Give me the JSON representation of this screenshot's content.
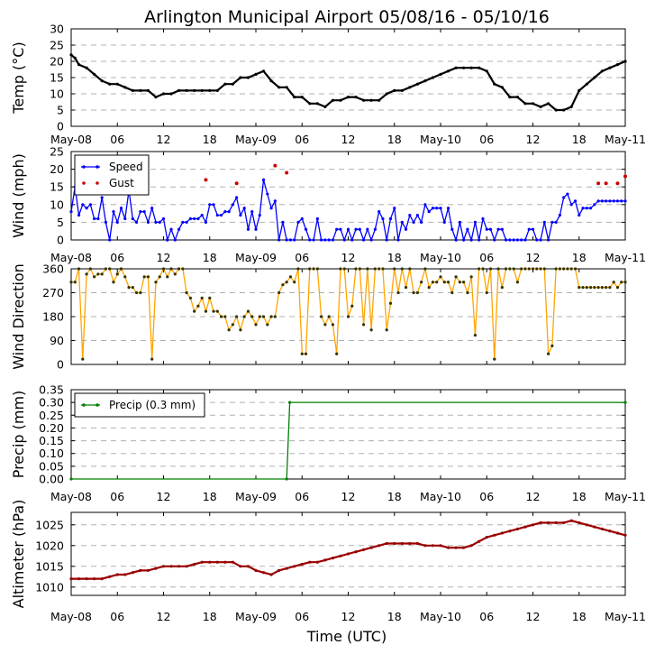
{
  "title": "Arlington Municipal Airport 05/08/16 - 05/10/16",
  "xlabel": "Time (UTC)",
  "x_ticks": [
    "May-08",
    "06",
    "12",
    "18",
    "May-09",
    "06",
    "12",
    "18",
    "May-10",
    "06",
    "12",
    "18",
    "May-11"
  ],
  "chart_data": [
    {
      "type": "line",
      "name": "temperature",
      "ylabel": "Temp (°C)",
      "ylim": [
        0,
        30
      ],
      "yticks": [
        0,
        5,
        10,
        15,
        20,
        25,
        30
      ],
      "x_range_hours": [
        0,
        72
      ],
      "series": [
        {
          "name": "",
          "color": "#000000",
          "x": [
            0,
            0.5,
            1,
            2,
            3,
            4,
            5,
            6,
            7,
            8,
            9,
            10,
            11,
            12,
            13,
            14,
            15,
            16,
            17,
            18,
            19,
            20,
            21,
            22,
            23,
            24,
            25,
            26,
            27,
            28,
            29,
            30,
            31,
            32,
            33,
            34,
            35,
            36,
            37,
            38,
            39,
            40,
            41,
            42,
            43,
            44,
            45,
            46,
            47,
            48,
            49,
            50,
            51,
            52,
            53,
            54,
            55,
            56,
            57,
            58,
            59,
            60,
            61,
            62,
            63,
            64,
            65,
            66,
            67,
            68,
            69,
            70,
            71,
            72
          ],
          "values": [
            22,
            21,
            19,
            18,
            16,
            14,
            13,
            13,
            12,
            11,
            11,
            11,
            9,
            10,
            10,
            11,
            11,
            11,
            11,
            11,
            11,
            13,
            13,
            15,
            15,
            16,
            17,
            14,
            12,
            12,
            9,
            9,
            7,
            7,
            6,
            8,
            8,
            9,
            9,
            8,
            8,
            8,
            10,
            11,
            11,
            12,
            13,
            14,
            15,
            16,
            17,
            18,
            18,
            18,
            18,
            17,
            13,
            12,
            9,
            9,
            7,
            7,
            6,
            7,
            5,
            5,
            6,
            11,
            13,
            15,
            17,
            18,
            19,
            20
          ]
        }
      ]
    },
    {
      "type": "line",
      "name": "wind",
      "ylabel": "Wind (mph)",
      "ylim": [
        0,
        25
      ],
      "yticks": [
        0,
        5,
        10,
        15,
        20,
        25
      ],
      "x_range_hours": [
        0,
        72
      ],
      "legend_position": "top-left",
      "series": [
        {
          "name": "Speed",
          "color": "#0000ff",
          "x": [
            0,
            0.5,
            1,
            1.5,
            2,
            2.5,
            3,
            3.5,
            4,
            4.5,
            5,
            5.5,
            6,
            6.5,
            7,
            7.5,
            8,
            8.5,
            9,
            9.5,
            10,
            10.5,
            11,
            11.5,
            12,
            12.5,
            13,
            13.5,
            14,
            14.5,
            15,
            15.5,
            16,
            16.5,
            17,
            17.5,
            18,
            18.5,
            19,
            19.5,
            20,
            20.5,
            21,
            21.5,
            22,
            22.5,
            23,
            23.5,
            24,
            24.5,
            25,
            25.5,
            26,
            26.5,
            27,
            27.5,
            28,
            28.5,
            29,
            29.5,
            30,
            30.5,
            31,
            31.5,
            32,
            32.5,
            33,
            33.5,
            34,
            34.5,
            35,
            35.5,
            36,
            36.5,
            37,
            37.5,
            38,
            38.5,
            39,
            39.5,
            40,
            40.5,
            41,
            41.5,
            42,
            42.5,
            43,
            43.5,
            44,
            44.5,
            45,
            45.5,
            46,
            46.5,
            47,
            47.5,
            48,
            48.5,
            49,
            49.5,
            50,
            50.5,
            51,
            51.5,
            52,
            52.5,
            53,
            53.5,
            54,
            54.5,
            55,
            55.5,
            56,
            56.5,
            57,
            57.5,
            58,
            58.5,
            59,
            59.5,
            60,
            60.5,
            61,
            61.5,
            62,
            62.5,
            63,
            63.5,
            64,
            64.5,
            65,
            65.5,
            66,
            66.5,
            67,
            67.5,
            68,
            68.5,
            69,
            69.5,
            70,
            70.5,
            71,
            71.5,
            72
          ],
          "values": [
            8,
            15,
            7,
            10,
            9,
            10,
            6,
            6,
            12,
            5,
            0,
            8,
            5,
            9,
            6,
            14,
            6,
            5,
            8,
            8,
            5,
            9,
            5,
            5,
            6,
            0,
            3,
            0,
            3,
            5,
            5,
            6,
            6,
            6,
            7,
            5,
            10,
            10,
            7,
            7,
            8,
            8,
            10,
            12,
            7,
            9,
            3,
            8,
            3,
            7,
            17,
            13,
            9,
            11,
            0,
            5,
            0,
            0,
            0,
            5,
            6,
            3,
            0,
            0,
            6,
            0,
            0,
            0,
            0,
            3,
            3,
            0,
            3,
            0,
            3,
            3,
            0,
            3,
            0,
            3,
            8,
            6,
            0,
            6,
            9,
            0,
            5,
            3,
            7,
            5,
            7,
            5,
            10,
            8,
            9,
            9,
            9,
            5,
            9,
            3,
            0,
            5,
            0,
            3,
            0,
            5,
            0,
            6,
            3,
            3,
            0,
            3,
            3,
            0,
            0,
            0,
            0,
            0,
            0,
            3,
            3,
            0,
            0,
            5,
            0,
            5,
            5,
            7,
            12,
            13,
            10,
            11,
            7,
            9,
            9,
            9,
            10,
            11,
            11,
            11,
            11,
            11,
            11,
            11,
            11
          ]
        },
        {
          "name": "Gust",
          "color": "#cc0000",
          "x": [
            17.5,
            21.5,
            26.5,
            28,
            68.5,
            69.5,
            71,
            72
          ],
          "values": [
            17,
            16,
            21,
            19,
            16,
            16,
            16,
            18
          ]
        }
      ]
    },
    {
      "type": "line",
      "name": "wind_direction",
      "ylabel": "Wind Direction",
      "ylim": [
        0,
        360
      ],
      "yticks": [
        0,
        90,
        180,
        270,
        360
      ],
      "x_range_hours": [
        0,
        72
      ],
      "series": [
        {
          "name": "",
          "color": "#ffa500",
          "x": [
            0,
            0.5,
            1,
            1.5,
            2,
            2.5,
            3,
            3.5,
            4,
            4.5,
            5,
            5.5,
            6,
            6.5,
            7,
            7.5,
            8,
            8.5,
            9,
            9.5,
            10,
            10.5,
            11,
            11.5,
            12,
            12.5,
            13,
            13.5,
            14,
            14.5,
            15,
            15.5,
            16,
            16.5,
            17,
            17.5,
            18,
            18.5,
            19,
            19.5,
            20,
            20.5,
            21,
            21.5,
            22,
            22.5,
            23,
            23.5,
            24,
            24.5,
            25,
            25.5,
            26,
            26.5,
            27,
            27.5,
            28,
            28.5,
            29,
            29.5,
            30,
            30.5,
            31,
            31.5,
            32,
            32.5,
            33,
            33.5,
            34,
            34.5,
            35,
            35.5,
            36,
            36.5,
            37,
            37.5,
            38,
            38.5,
            39,
            39.5,
            40,
            40.5,
            41,
            41.5,
            42,
            42.5,
            43,
            43.5,
            44,
            44.5,
            45,
            45.5,
            46,
            46.5,
            47,
            47.5,
            48,
            48.5,
            49,
            49.5,
            50,
            50.5,
            51,
            51.5,
            52,
            52.5,
            53,
            53.5,
            54,
            54.5,
            55,
            55.5,
            56,
            56.5,
            57,
            57.5,
            58,
            58.5,
            59,
            59.5,
            60,
            60.5,
            61,
            61.5,
            62,
            62.5,
            63,
            63.5,
            64,
            64.5,
            65,
            65.5,
            66,
            66.5,
            67,
            67.5,
            68,
            68.5,
            69,
            69.5,
            70,
            70.5,
            71,
            71.5,
            72
          ],
          "values": [
            310,
            310,
            360,
            20,
            340,
            360,
            330,
            340,
            340,
            360,
            360,
            310,
            340,
            360,
            330,
            290,
            290,
            270,
            270,
            330,
            330,
            20,
            310,
            330,
            360,
            330,
            360,
            340,
            360,
            360,
            270,
            250,
            200,
            220,
            250,
            200,
            250,
            200,
            200,
            180,
            180,
            130,
            150,
            180,
            130,
            180,
            200,
            180,
            150,
            180,
            180,
            150,
            180,
            180,
            270,
            300,
            310,
            330,
            310,
            360,
            40,
            40,
            360,
            360,
            360,
            180,
            150,
            180,
            150,
            40,
            360,
            360,
            180,
            220,
            360,
            360,
            150,
            360,
            130,
            360,
            360,
            360,
            130,
            230,
            360,
            270,
            360,
            290,
            360,
            270,
            270,
            310,
            360,
            290,
            310,
            310,
            330,
            310,
            310,
            270,
            330,
            310,
            310,
            270,
            330,
            110,
            360,
            360,
            270,
            360,
            20,
            360,
            290,
            360,
            360,
            360,
            310,
            360,
            360,
            360,
            360,
            360,
            360,
            360,
            40,
            70,
            360,
            360,
            360,
            360,
            360,
            360,
            290,
            290,
            290,
            290,
            290,
            290,
            290,
            290,
            290,
            310,
            290,
            310,
            310
          ]
        }
      ]
    },
    {
      "type": "line",
      "name": "precip",
      "ylabel": "Precip (mm)",
      "ylim": [
        0,
        0.35
      ],
      "yticks": [
        0.0,
        0.05,
        0.1,
        0.15,
        0.2,
        0.25,
        0.3,
        0.35
      ],
      "ytick_labels": [
        "0.00",
        "0.05",
        "0.10",
        "0.15",
        "0.20",
        "0.25",
        "0.30",
        "0.35"
      ],
      "x_range_hours": [
        0,
        72
      ],
      "legend_position": "top-left",
      "series": [
        {
          "name": "Precip (0.3 mm)",
          "color": "#008000",
          "x": [
            0,
            28,
            28.4,
            72
          ],
          "values": [
            0.0,
            0.0,
            0.3,
            0.3
          ]
        }
      ]
    },
    {
      "type": "line",
      "name": "altimeter",
      "ylabel": "Altimeter (hPa)",
      "ylim": [
        1008,
        1028
      ],
      "yticks": [
        1010,
        1015,
        1020,
        1025
      ],
      "x_range_hours": [
        0,
        72
      ],
      "series": [
        {
          "name": "",
          "color": "#990000",
          "x": [
            0,
            1,
            2,
            3,
            4,
            5,
            6,
            7,
            8,
            9,
            10,
            11,
            12,
            13,
            14,
            15,
            16,
            17,
            18,
            19,
            20,
            21,
            22,
            23,
            24,
            25,
            26,
            27,
            28,
            29,
            30,
            31,
            32,
            33,
            34,
            35,
            36,
            37,
            38,
            39,
            40,
            41,
            42,
            43,
            44,
            45,
            46,
            47,
            48,
            49,
            50,
            51,
            52,
            53,
            54,
            55,
            56,
            57,
            58,
            59,
            60,
            61,
            62,
            63,
            64,
            65,
            66,
            67,
            68,
            69,
            70,
            71,
            72
          ],
          "values": [
            1012,
            1012,
            1012,
            1012,
            1012,
            1012.5,
            1013,
            1013,
            1013.5,
            1014,
            1014,
            1014.5,
            1015,
            1015,
            1015,
            1015,
            1015.5,
            1016,
            1016,
            1016,
            1016,
            1016,
            1015,
            1015,
            1014,
            1013.5,
            1013,
            1014,
            1014.5,
            1015,
            1015.5,
            1016,
            1016,
            1016.5,
            1017,
            1017.5,
            1018,
            1018.5,
            1019,
            1019.5,
            1020,
            1020.5,
            1020.5,
            1020.5,
            1020.5,
            1020.5,
            1020,
            1020,
            1020,
            1019.5,
            1019.5,
            1019.5,
            1020,
            1021,
            1022,
            1022.5,
            1023,
            1023.5,
            1024,
            1024.5,
            1025,
            1025.5,
            1025.5,
            1025.5,
            1025.5,
            1026,
            1025.5,
            1025,
            1024.5,
            1024,
            1023.5,
            1023,
            1022.5
          ]
        }
      ]
    }
  ]
}
